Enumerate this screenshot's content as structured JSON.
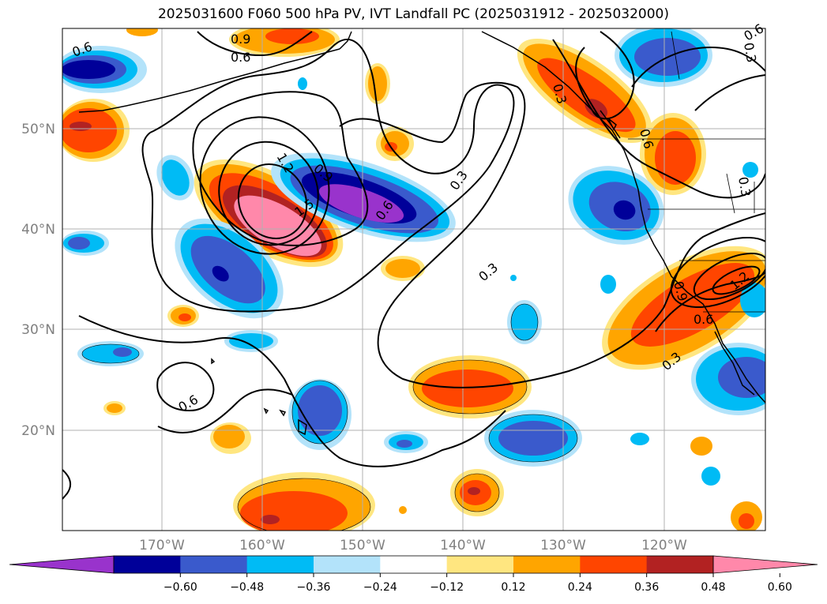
{
  "title": "2025031600 F060 500 hPa PV, IVT Landfall PC (2025031912 - 2025032000)",
  "map": {
    "lat_labels": [
      "50°N",
      "40°N",
      "30°N",
      "20°N"
    ],
    "lon_labels": [
      "170°W",
      "160°W",
      "150°W",
      "140°W",
      "130°W",
      "120°W"
    ],
    "label_color": "#808080",
    "contour_labels": [
      "0.9",
      "0.6",
      "0.6",
      "1.2",
      "0.9",
      "1.5",
      "0.6",
      "0.3",
      "0.3",
      "0.3",
      "0.6",
      "0.3",
      "0.6",
      "0.9",
      "1.2",
      "0.6",
      "0.3",
      "0.3",
      "0.6"
    ]
  },
  "colorbar": {
    "tick_labels": [
      "−0.60",
      "−0.48",
      "−0.36",
      "−0.24",
      "−0.12",
      "0.12",
      "0.24",
      "0.36",
      "0.48",
      "0.60"
    ],
    "colors": [
      "#9933cc",
      "#000099",
      "#3a5acc",
      "#00bbf5",
      "#b3e3fa",
      "#ffffff",
      "#ffe680",
      "#ffa500",
      "#ff4500",
      "#b22222",
      "#ff88aa"
    ]
  }
}
